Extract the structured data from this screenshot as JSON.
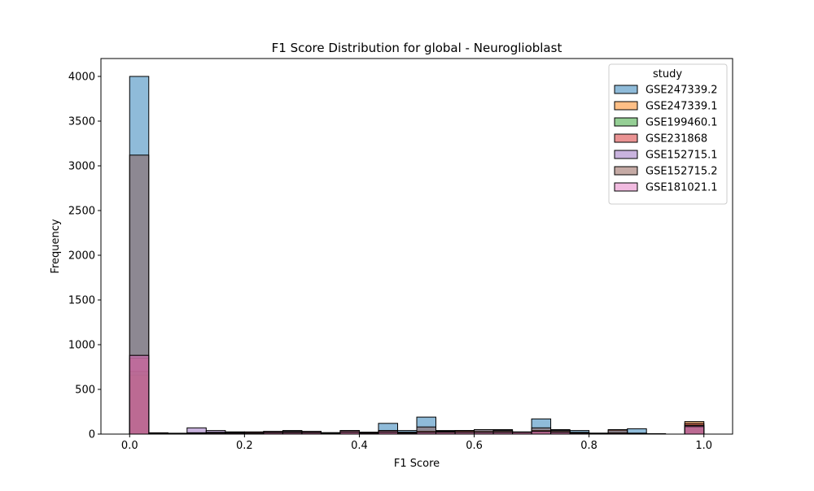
{
  "chart_data": {
    "type": "bar",
    "title": "F1 Score Distribution for global - Neuroglioblast",
    "xlabel": "F1 Score",
    "ylabel": "Frequency",
    "xlim": [
      -0.05,
      1.05
    ],
    "ylim": [
      0,
      4200
    ],
    "x_ticks": [
      0.0,
      0.2,
      0.4,
      0.6,
      0.8,
      1.0
    ],
    "x_tick_labels": [
      "0.0",
      "0.2",
      "0.4",
      "0.6",
      "0.8",
      "1.0"
    ],
    "y_ticks": [
      0,
      500,
      1000,
      1500,
      2000,
      2500,
      3000,
      3500,
      4000
    ],
    "y_tick_labels": [
      "0",
      "500",
      "1000",
      "1500",
      "2000",
      "2500",
      "3000",
      "3500",
      "4000"
    ],
    "grid": false,
    "bin_edges": [
      0.0,
      0.0333,
      0.0667,
      0.1,
      0.1333,
      0.1667,
      0.2,
      0.2333,
      0.2667,
      0.3,
      0.3333,
      0.3667,
      0.4,
      0.4333,
      0.4667,
      0.5,
      0.5333,
      0.5667,
      0.6,
      0.6333,
      0.6667,
      0.7,
      0.7333,
      0.7667,
      0.8,
      0.8333,
      0.8667,
      0.9,
      0.9333,
      0.9667,
      1.0
    ],
    "legend": {
      "title": "study",
      "position": "top-right"
    },
    "series": [
      {
        "name": "GSE247339.2",
        "color": "#1f77b4",
        "counts": [
          4000,
          10,
          5,
          5,
          20,
          15,
          15,
          20,
          40,
          25,
          15,
          30,
          20,
          120,
          40,
          190,
          40,
          30,
          50,
          50,
          25,
          170,
          50,
          40,
          10,
          40,
          60,
          5,
          0,
          0,
          80
        ]
      },
      {
        "name": "GSE247339.1",
        "color": "#ff7f0e",
        "counts": [
          660,
          5,
          5,
          5,
          10,
          5,
          15,
          25,
          20,
          20,
          10,
          20,
          10,
          20,
          10,
          20,
          30,
          40,
          20,
          25,
          20,
          40,
          20,
          10,
          5,
          10,
          5,
          0,
          0,
          0,
          140
        ]
      },
      {
        "name": "GSE199460.1",
        "color": "#2ca02c",
        "counts": [
          700,
          5,
          5,
          5,
          10,
          10,
          10,
          15,
          15,
          15,
          10,
          20,
          10,
          20,
          10,
          20,
          20,
          20,
          20,
          20,
          20,
          30,
          20,
          10,
          5,
          10,
          5,
          0,
          0,
          0,
          100
        ]
      },
      {
        "name": "GSE231868",
        "color": "#d62728",
        "counts": [
          850,
          10,
          5,
          5,
          10,
          10,
          10,
          20,
          20,
          20,
          10,
          30,
          20,
          30,
          20,
          30,
          30,
          40,
          20,
          20,
          20,
          40,
          20,
          10,
          5,
          10,
          5,
          0,
          0,
          0,
          120
        ]
      },
      {
        "name": "GSE152715.1",
        "color": "#9467bd",
        "counts": [
          880,
          10,
          5,
          70,
          40,
          25,
          20,
          30,
          30,
          30,
          15,
          40,
          15,
          40,
          20,
          30,
          30,
          30,
          30,
          30,
          20,
          40,
          30,
          15,
          10,
          15,
          10,
          0,
          0,
          0,
          100
        ]
      },
      {
        "name": "GSE152715.2",
        "color": "#8c564b",
        "counts": [
          3120,
          15,
          10,
          15,
          20,
          20,
          25,
          30,
          30,
          30,
          15,
          40,
          20,
          40,
          20,
          80,
          30,
          40,
          50,
          40,
          20,
          70,
          40,
          20,
          10,
          50,
          10,
          0,
          0,
          0,
          80
        ]
      },
      {
        "name": "GSE181021.1",
        "color": "#e377c2",
        "counts": [
          880,
          5,
          5,
          10,
          10,
          10,
          10,
          15,
          15,
          15,
          10,
          20,
          10,
          20,
          10,
          20,
          20,
          20,
          20,
          20,
          20,
          30,
          20,
          10,
          5,
          10,
          5,
          0,
          0,
          0,
          90
        ]
      }
    ]
  }
}
